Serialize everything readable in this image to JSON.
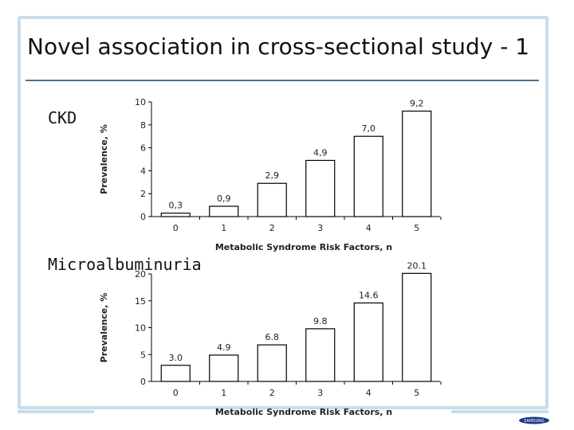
{
  "slide": {
    "title": "Novel association in cross-sectional study - 1"
  },
  "labels": {
    "ckd": "CKD",
    "microalbuminuria": "Microalbuminuria"
  },
  "logo": {
    "text": "SAMSUNG"
  },
  "colors": {
    "frame": "#c9dce8",
    "rule": "#4f6f8f",
    "bar_fill": "#ffffff",
    "bar_stroke": "#000000"
  },
  "chart_data": [
    {
      "type": "bar",
      "categories": [
        "0",
        "1",
        "2",
        "3",
        "4",
        "5"
      ],
      "values": [
        0.3,
        0.9,
        2.9,
        4.9,
        7.0,
        9.2
      ],
      "data_labels": [
        "0,3",
        "0,9",
        "2,9",
        "4,9",
        "7,0",
        "9,2"
      ],
      "title": "",
      "xlabel": "Metabolic Syndrome Risk Factors, n",
      "ylabel": "Prevalence, %",
      "ylim": [
        0,
        10
      ],
      "yticks": [
        0,
        2,
        4,
        6,
        8,
        10
      ],
      "grid": false
    },
    {
      "type": "bar",
      "categories": [
        "0",
        "1",
        "2",
        "3",
        "4",
        "5"
      ],
      "values": [
        3.0,
        4.9,
        6.8,
        9.8,
        14.6,
        20.1
      ],
      "data_labels": [
        "3.0",
        "4.9",
        "6.8",
        "9.8",
        "14.6",
        "20.1"
      ],
      "title": "",
      "xlabel": "Metabolic Syndrome Risk Factors, n",
      "ylabel": "Prevalence, %",
      "ylim": [
        0,
        20
      ],
      "yticks": [
        0,
        5,
        10,
        15,
        20
      ],
      "grid": false
    }
  ]
}
